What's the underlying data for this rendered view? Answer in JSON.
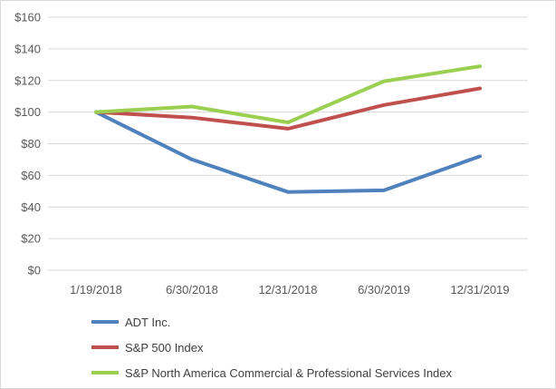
{
  "chart_data": {
    "type": "line",
    "title": "",
    "xlabel": "",
    "ylabel": "",
    "categories": [
      "1/19/2018",
      "6/30/2018",
      "12/31/2018",
      "6/30/2019",
      "12/31/2019"
    ],
    "y_ticks": [
      "$0",
      "$20",
      "$40",
      "$60",
      "$80",
      "$100",
      "$120",
      "$140",
      "$160"
    ],
    "ylim": [
      0,
      160
    ],
    "grid": true,
    "legend_position": "bottom",
    "series": [
      {
        "name": "ADT Inc.",
        "color": "#4f81bd",
        "values": [
          100,
          70,
          49.5,
          50.5,
          72
        ]
      },
      {
        "name": "S&P 500 Index",
        "color": "#c0504d",
        "values": [
          100,
          96.5,
          89.5,
          104.5,
          115
        ]
      },
      {
        "name": "S&P North America Commercial & Professional Services Index",
        "color": "#9bcf51",
        "values": [
          100,
          103.5,
          93.5,
          119.5,
          129
        ]
      }
    ]
  }
}
